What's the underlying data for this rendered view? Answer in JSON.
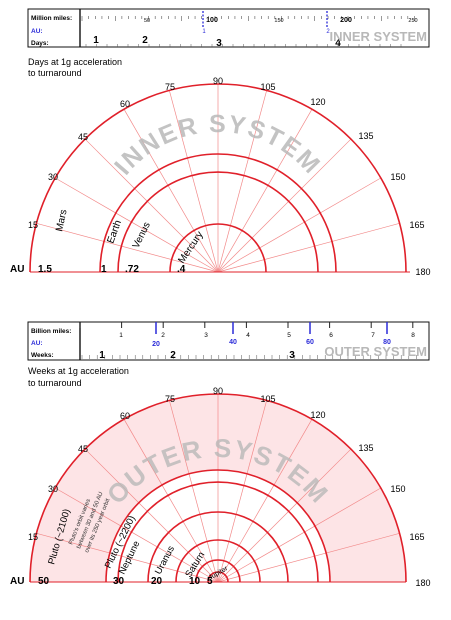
{
  "inner": {
    "scale_labels": {
      "miles": "Million miles:",
      "au": "AU:",
      "days": "Days:"
    },
    "miles_ticks": [
      "50",
      "100",
      "150",
      "200",
      "250"
    ],
    "au_ticks": [
      "1",
      "2"
    ],
    "day_ticks": [
      "1",
      "2",
      "3",
      "4"
    ],
    "watermark": "INNER SYSTEM",
    "caption_line1": "Days at 1g acceleration",
    "caption_line2": "to turnaround",
    "angle_labels": [
      "15",
      "30",
      "45",
      "60",
      "75",
      "90",
      "105",
      "120",
      "135",
      "150",
      "165",
      "180"
    ],
    "au_label": "AU",
    "ring_values": [
      ".4",
      ".72",
      "1",
      "1.5"
    ],
    "planets": [
      "Mercury",
      "Venus",
      "Earth",
      "Mars"
    ],
    "arc_watermark": "INNER SYSTEM"
  },
  "outer": {
    "scale_labels": {
      "miles": "Billion miles:",
      "au": "AU:",
      "weeks": "Weeks:"
    },
    "miles_ticks": [
      "1",
      "2",
      "3",
      "4",
      "5",
      "6",
      "7",
      "8"
    ],
    "au_ticks": [
      "20",
      "40",
      "60",
      "80"
    ],
    "week_ticks": [
      "1",
      "2",
      "3"
    ],
    "watermark": "OUTER SYSTEM",
    "caption_line1": "Weeks at 1g acceleration",
    "caption_line2": "to turnaround",
    "angle_labels": [
      "15",
      "30",
      "45",
      "60",
      "75",
      "90",
      "105",
      "120",
      "135",
      "150",
      "165",
      "180"
    ],
    "au_label": "AU",
    "ring_values": [
      "5",
      "10",
      "20",
      "30",
      "50"
    ],
    "planets": [
      "Jupiter",
      "Saturn",
      "Uranus",
      "Neptune",
      "Pluto (~2200)",
      "Pluto (~2100)"
    ],
    "pluto_note": [
      "Pluto's orbit varies",
      "between 30 and 50 AU",
      "over its 250 year orbit"
    ],
    "arc_watermark": "OUTER SYSTEM"
  },
  "colors": {
    "ring": "#e0202a",
    "spoke": "#f28a8a",
    "fill": "#fde4e6",
    "au_blue": "#2a2ad8",
    "watermark": "#b8b8b8"
  }
}
